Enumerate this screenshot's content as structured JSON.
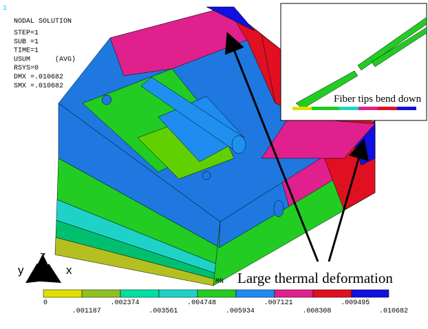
{
  "view_number": "1",
  "solution_info": {
    "title": "NODAL SOLUTION",
    "lines": [
      "STEP=1",
      "SUB =1",
      "TIME=1",
      "USUM      (AVG)",
      "RSYS=0",
      "DMX =.010682",
      "SMX =.010682"
    ]
  },
  "triad": {
    "z": "z",
    "y": "y",
    "x": "x"
  },
  "colorbar": {
    "labels": [
      "0",
      ".001187",
      ".002374",
      ".003561",
      ".004748",
      ".005934",
      ".007121",
      ".008308",
      ".009495",
      ".010682"
    ]
  },
  "min_marker": "MN",
  "inset": {
    "caption": "Fiber tips bend down"
  },
  "annotation": "Large thermal deformation"
}
